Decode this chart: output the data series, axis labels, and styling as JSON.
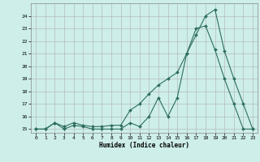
{
  "xlabel": "Humidex (Indice chaleur)",
  "bg_color": "#cdeee9",
  "grid_color": "#b0b0b0",
  "line_color": "#2d6e60",
  "xlim": [
    -0.5,
    23.5
  ],
  "ylim": [
    14.7,
    25.0
  ],
  "yticks": [
    15,
    16,
    17,
    18,
    19,
    20,
    21,
    22,
    23,
    24
  ],
  "xticks": [
    0,
    1,
    2,
    3,
    4,
    5,
    6,
    7,
    8,
    9,
    10,
    11,
    12,
    13,
    14,
    15,
    16,
    17,
    18,
    19,
    20,
    21,
    22,
    23
  ],
  "series1_x": [
    0,
    1,
    2,
    3,
    4,
    5,
    6,
    7,
    8,
    9,
    10,
    11,
    12,
    13,
    14,
    15,
    16,
    17,
    18,
    19,
    20,
    21,
    22,
    23
  ],
  "series1_y": [
    15,
    15,
    15.5,
    15.0,
    15.3,
    15.2,
    15.0,
    15.0,
    15.0,
    15.0,
    15.5,
    15.2,
    16.0,
    17.5,
    16.0,
    17.5,
    21.0,
    23.0,
    23.2,
    21.3,
    19.0,
    17.0,
    15.0,
    15.0
  ],
  "series2_x": [
    0,
    1,
    2,
    3,
    4,
    5,
    6,
    7,
    8,
    9,
    10,
    11,
    12,
    13,
    14,
    15,
    16,
    17,
    18,
    19,
    20,
    21,
    22,
    23
  ],
  "series2_y": [
    15,
    15,
    15.5,
    15.2,
    15.5,
    15.3,
    15.2,
    15.2,
    15.3,
    15.3,
    16.5,
    17.0,
    17.8,
    18.5,
    19.0,
    19.5,
    21.0,
    22.5,
    24.0,
    24.5,
    21.2,
    19.0,
    17.0,
    15.0
  ]
}
